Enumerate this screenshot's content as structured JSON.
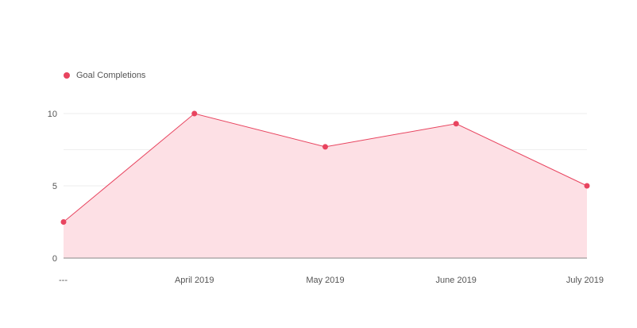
{
  "chart_data": {
    "type": "area",
    "categories": [
      "---",
      "April 2019",
      "May 2019",
      "June 2019",
      "July 2019"
    ],
    "series": [
      {
        "name": "Goal Completions",
        "values": [
          2.5,
          10,
          7.7,
          9.3,
          5
        ]
      }
    ],
    "yticks": [
      0,
      5,
      10
    ],
    "ylim": [
      0,
      10
    ],
    "legend_position": "top-left",
    "grid": true,
    "colors": {
      "line": "#e8445f",
      "fill": "#fde0e5",
      "grid": "#eeeeee",
      "axis": "#888888"
    }
  }
}
